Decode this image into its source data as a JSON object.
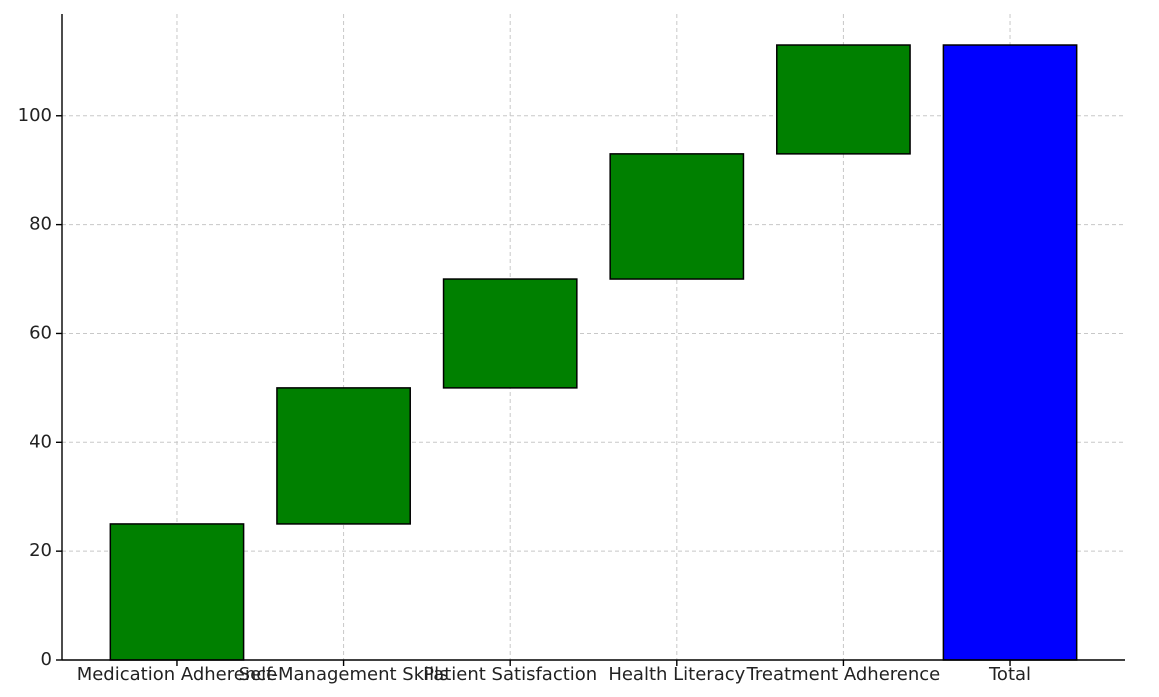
{
  "chart_data": {
    "type": "waterfall",
    "categories": [
      "Medication Adherence",
      "Self-Management Skills",
      "Patient Satisfaction",
      "Health Literacy",
      "Treatment Adherence",
      "Total"
    ],
    "values": [
      25,
      25,
      20,
      23,
      20,
      113
    ],
    "colors": [
      "green",
      "green",
      "green",
      "green",
      "green",
      "blue"
    ],
    "show_total": true,
    "ylim": [
      0,
      118.7
    ],
    "yticks": [
      0,
      20,
      40,
      60,
      80,
      100
    ],
    "grid": true
  }
}
